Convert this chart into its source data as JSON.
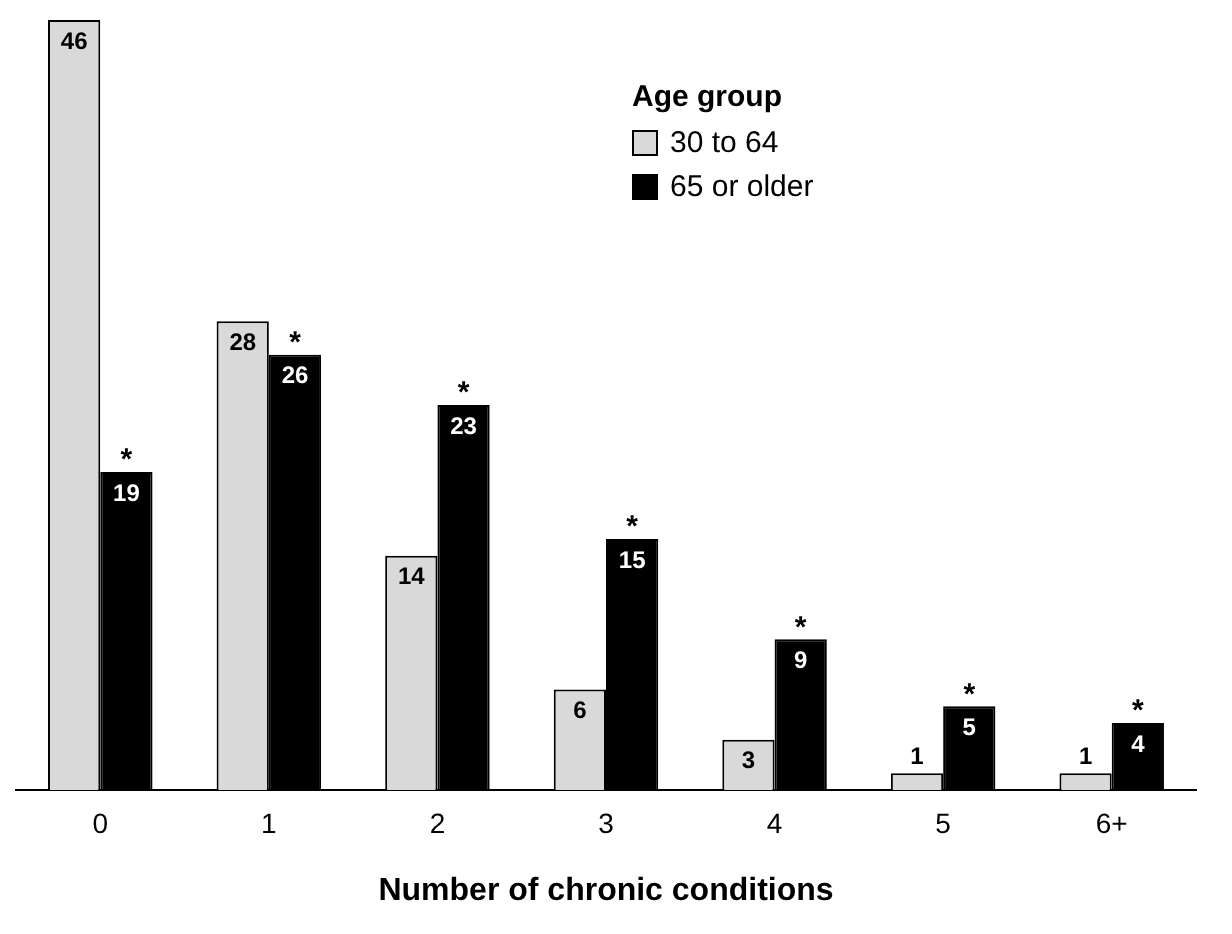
{
  "chart_data": {
    "type": "bar",
    "xlabel": "Number of chronic conditions",
    "legend_title": "Age group",
    "legend": "top right",
    "data_labels": true,
    "grid": false,
    "categories": [
      "0",
      "1",
      "2",
      "3",
      "4",
      "5",
      "6+"
    ],
    "series": [
      {
        "name": "30 to 64",
        "color": "#d9d9d9",
        "values": [
          46,
          28,
          14,
          6,
          3,
          1,
          1
        ]
      },
      {
        "name": "65 or older",
        "color": "#000000",
        "values": [
          19,
          26,
          23,
          15,
          9,
          5,
          4
        ]
      }
    ],
    "annotations": [
      {
        "text": "*",
        "x": "0",
        "y": 19
      },
      {
        "text": "*",
        "x": "1",
        "y": 26
      },
      {
        "text": "*",
        "x": "2",
        "y": 23
      },
      {
        "text": "*",
        "x": "3",
        "y": 15
      },
      {
        "text": "*",
        "x": "4",
        "y": 9
      },
      {
        "text": "*",
        "x": "5",
        "y": 5
      },
      {
        "text": "*",
        "x": "6+",
        "y": 4
      }
    ]
  }
}
